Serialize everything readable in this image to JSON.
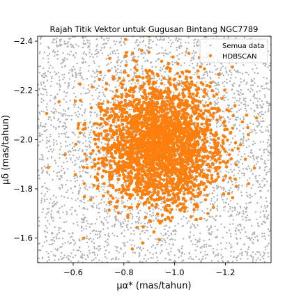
{
  "chart_data": {
    "type": "scatter",
    "title": "Rajah Titik Vektor untuk Gugusan Bintang NGC7789",
    "xlabel": "μα* (mas/tahun)",
    "ylabel": "μδ (mas/tahun)",
    "xlim": [
      -0.46,
      -1.38
    ],
    "ylim": [
      -1.5,
      -2.42
    ],
    "x_ticks": [
      -0.6,
      -0.8,
      -1.0,
      -1.2
    ],
    "x_tick_labels": [
      "−0.6",
      "−0.8",
      "−1.0",
      "−1.2"
    ],
    "y_ticks": [
      -2.4,
      -2.2,
      -2.0,
      -1.8,
      -1.6
    ],
    "y_tick_labels": [
      "−2.4",
      "−2.2",
      "−2.0",
      "−1.8",
      "−1.6"
    ],
    "x_inverted": true,
    "y_inverted": true,
    "grid": false,
    "legend_position": "top-right",
    "series": [
      {
        "name": "Semua data",
        "color": "#b0b0b0",
        "marker": "small-dot",
        "distribution": "uniform",
        "x_range": [
          -0.46,
          -1.38
        ],
        "y_range": [
          -1.5,
          -2.42
        ],
        "count": 3500
      },
      {
        "name": "HDBSCAN",
        "color": "#ff7f0e",
        "marker": "dot",
        "distribution": "gaussian-cluster",
        "center": [
          -0.94,
          -1.99
        ],
        "std": [
          0.12,
          0.13
        ],
        "count": 2600
      }
    ]
  }
}
